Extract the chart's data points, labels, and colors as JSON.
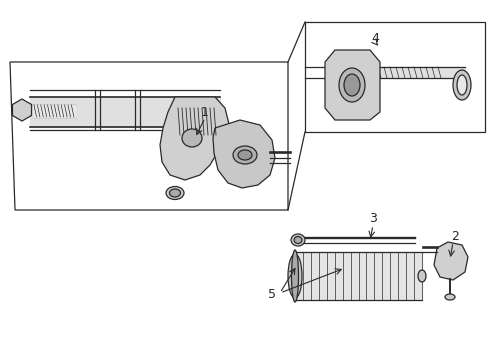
{
  "bg_color": "#ffffff",
  "line_color": "#2a2a2a",
  "label_color": "#000000",
  "figsize": [
    4.9,
    3.6
  ],
  "dpi": 100,
  "lw": 0.9
}
